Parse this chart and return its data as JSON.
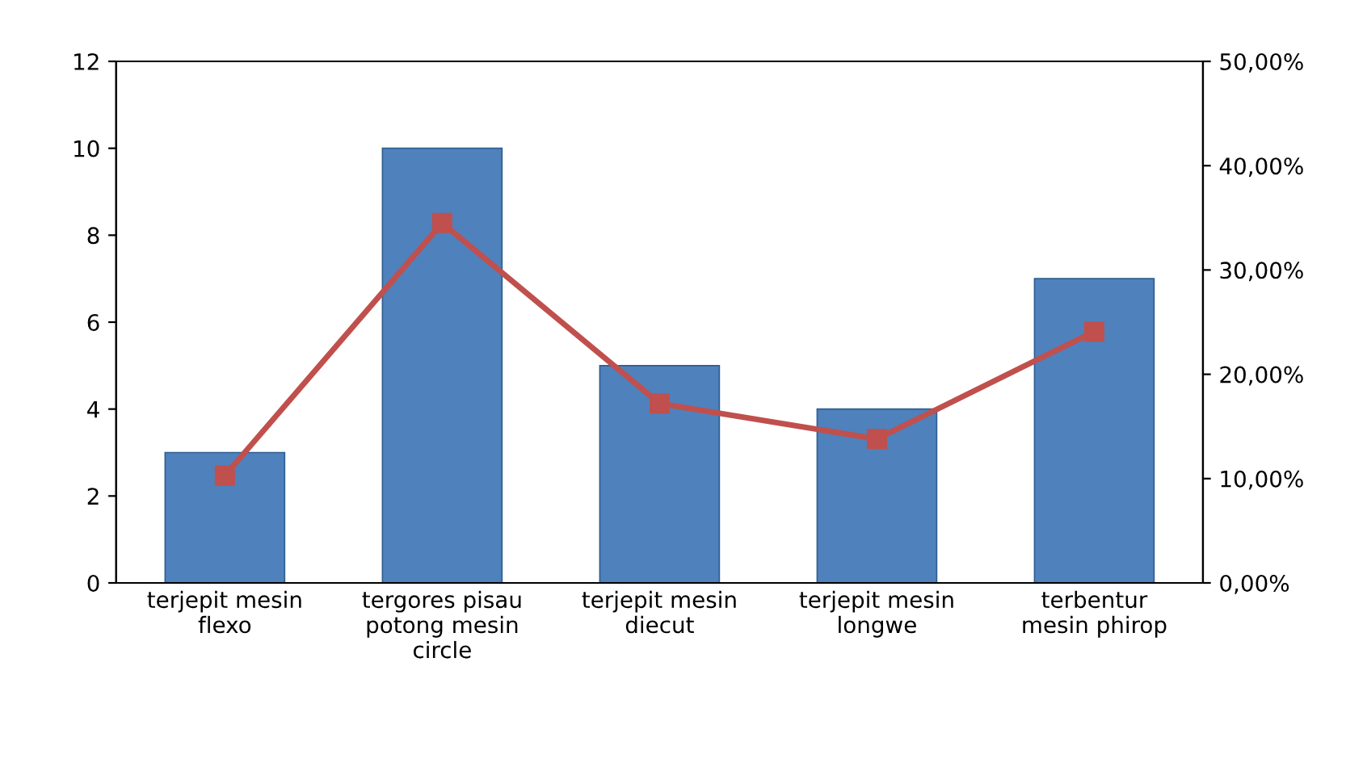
{
  "chart_data": {
    "type": "bar",
    "categories": [
      "terjepit mesin\nflexo",
      "tergores pisau\npotong mesin\ncircle",
      "terjepit mesin\ndiecut",
      "terjepit mesin\nlongwe",
      "terbentur\nmesin phirop"
    ],
    "series": [
      {
        "color": "#4f81bd",
        "values": [
          3,
          10,
          5,
          4,
          7
        ]
      },
      {
        "type": "line",
        "axis": "y2",
        "color": "#c0504d",
        "marker": "square",
        "line_style": "solid",
        "values": [
          10.3,
          34.5,
          17.2,
          13.8,
          24.1
        ]
      }
    ],
    "ylim": [
      0,
      12
    ],
    "yticks": [
      0,
      2,
      4,
      6,
      8,
      10,
      12
    ],
    "y2lim": [
      0,
      50
    ],
    "y2ticks": [
      {
        "value": 0,
        "label": "0,00%"
      },
      {
        "value": 10,
        "label": "10,00%"
      },
      {
        "value": 20,
        "label": "20,00%"
      },
      {
        "value": 30,
        "label": "30,00%"
      },
      {
        "value": 40,
        "label": "40,00%"
      },
      {
        "value": 50,
        "label": "50,00%"
      }
    ],
    "grid": false,
    "legend": false
  }
}
